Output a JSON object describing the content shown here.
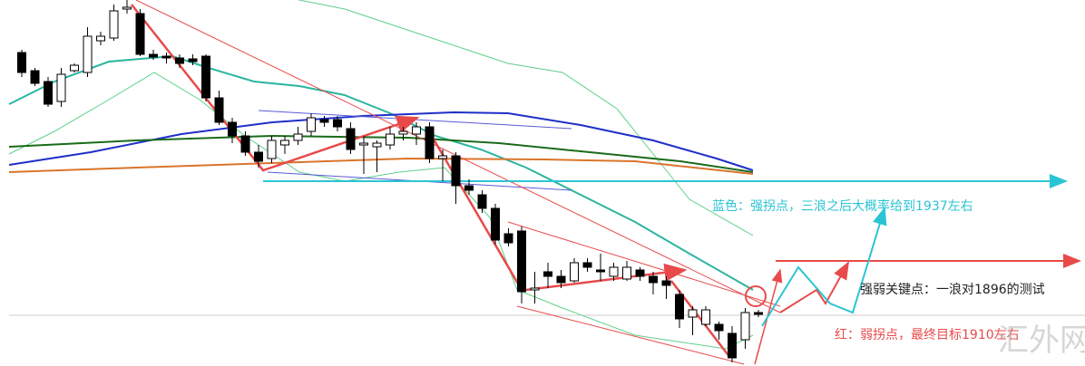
{
  "chart_data": {
    "type": "candlestick",
    "up_color": "#ffffff",
    "down_color": "#000000",
    "ylim": [
      1878.8,
      2000
    ],
    "series": {
      "open": [
        1982.6,
        1976.6,
        1973,
        1966.4,
        1976.6,
        1976,
        1986.5,
        1987.4,
        1997,
        1995.5,
        1982,
        1981.4,
        1980.8,
        1980.5,
        1981.4,
        1967.6,
        1959.5,
        1955,
        1949.6,
        1947.5,
        1952,
        1953.5,
        1956.5,
        1960.4,
        1960.4,
        1957.4,
        1952,
        1951.4,
        1952,
        1955.6,
        1955.6,
        1958,
        1947.5,
        1948.4,
        1938.5,
        1935.5,
        1931,
        1922.6,
        1923.5,
        1904,
        1910,
        1908.5,
        1907,
        1913,
        1910.6,
        1908.5,
        1907.6,
        1910.6,
        1908.5,
        1907,
        1902.5,
        1895,
        1892.6,
        1892.6,
        1889.6,
        1887.5,
        1896.5
      ],
      "high": [
        1983.5,
        1977.5,
        1974.5,
        1977.5,
        1979,
        1991,
        1989.5,
        1998.5,
        2000,
        1997,
        1983.5,
        1982.6,
        1982,
        1982,
        1982,
        1970,
        1961,
        1956.5,
        1952,
        1955,
        1955,
        1958,
        1962.5,
        1961.6,
        1961.6,
        1959.5,
        1955,
        1953.5,
        1958,
        1958,
        1959.5,
        1959.5,
        1950.5,
        1949.6,
        1940.6,
        1937,
        1932.5,
        1924.4,
        1925,
        1910,
        1913,
        1910.6,
        1914.5,
        1914.5,
        1916,
        1913,
        1913.6,
        1911.5,
        1910,
        1908.5,
        1904,
        1898.6,
        1898.6,
        1893.5,
        1892,
        1898,
        1897.4
      ],
      "low": [
        1974.5,
        1971.5,
        1964.6,
        1964.6,
        1976,
        1974.5,
        1985,
        1986.5,
        1995.5,
        1981.4,
        1980.2,
        1979,
        1977.5,
        1978.4,
        1966.4,
        1958.6,
        1952.6,
        1948.4,
        1944.5,
        1946,
        1949,
        1952,
        1955,
        1958,
        1956.5,
        1949,
        1942.4,
        1943,
        1950.5,
        1953.5,
        1952,
        1946,
        1940,
        1932.5,
        1935.5,
        1929.5,
        1919,
        1918.4,
        1899.5,
        1899.5,
        1904.6,
        1904.6,
        1906.4,
        1910,
        1907,
        1907,
        1907,
        1907,
        1902.5,
        1901,
        1891.4,
        1889,
        1892,
        1887.5,
        1880,
        1884.5,
        1895
      ],
      "close": [
        1976,
        1972.4,
        1965.5,
        1975.4,
        1978.4,
        1988,
        1988,
        1996.4,
        1997.6,
        1982,
        1981.1,
        1980.8,
        1979,
        1979.6,
        1967.6,
        1959.5,
        1955,
        1949.6,
        1946.6,
        1953.5,
        1953.5,
        1955.6,
        1961,
        1959.5,
        1958,
        1950.5,
        1952.6,
        1952.6,
        1955.6,
        1956.5,
        1958,
        1947.5,
        1948.4,
        1938.5,
        1937,
        1931,
        1920.5,
        1919.6,
        1903.4,
        1904.6,
        1908.5,
        1906.4,
        1913,
        1911.5,
        1910,
        1911.5,
        1911.5,
        1908.5,
        1906.4,
        1905.5,
        1894.4,
        1897.4,
        1897.4,
        1890.5,
        1881.5,
        1896.5,
        1895.9
      ]
    },
    "annotations": [
      "蓝色：强拐点，三浪之后大概率给到1937左右",
      "强弱关键点：一浪对1896的测试",
      "红：弱拐点，最终目标1910左右"
    ],
    "watermark": "汇外网"
  }
}
